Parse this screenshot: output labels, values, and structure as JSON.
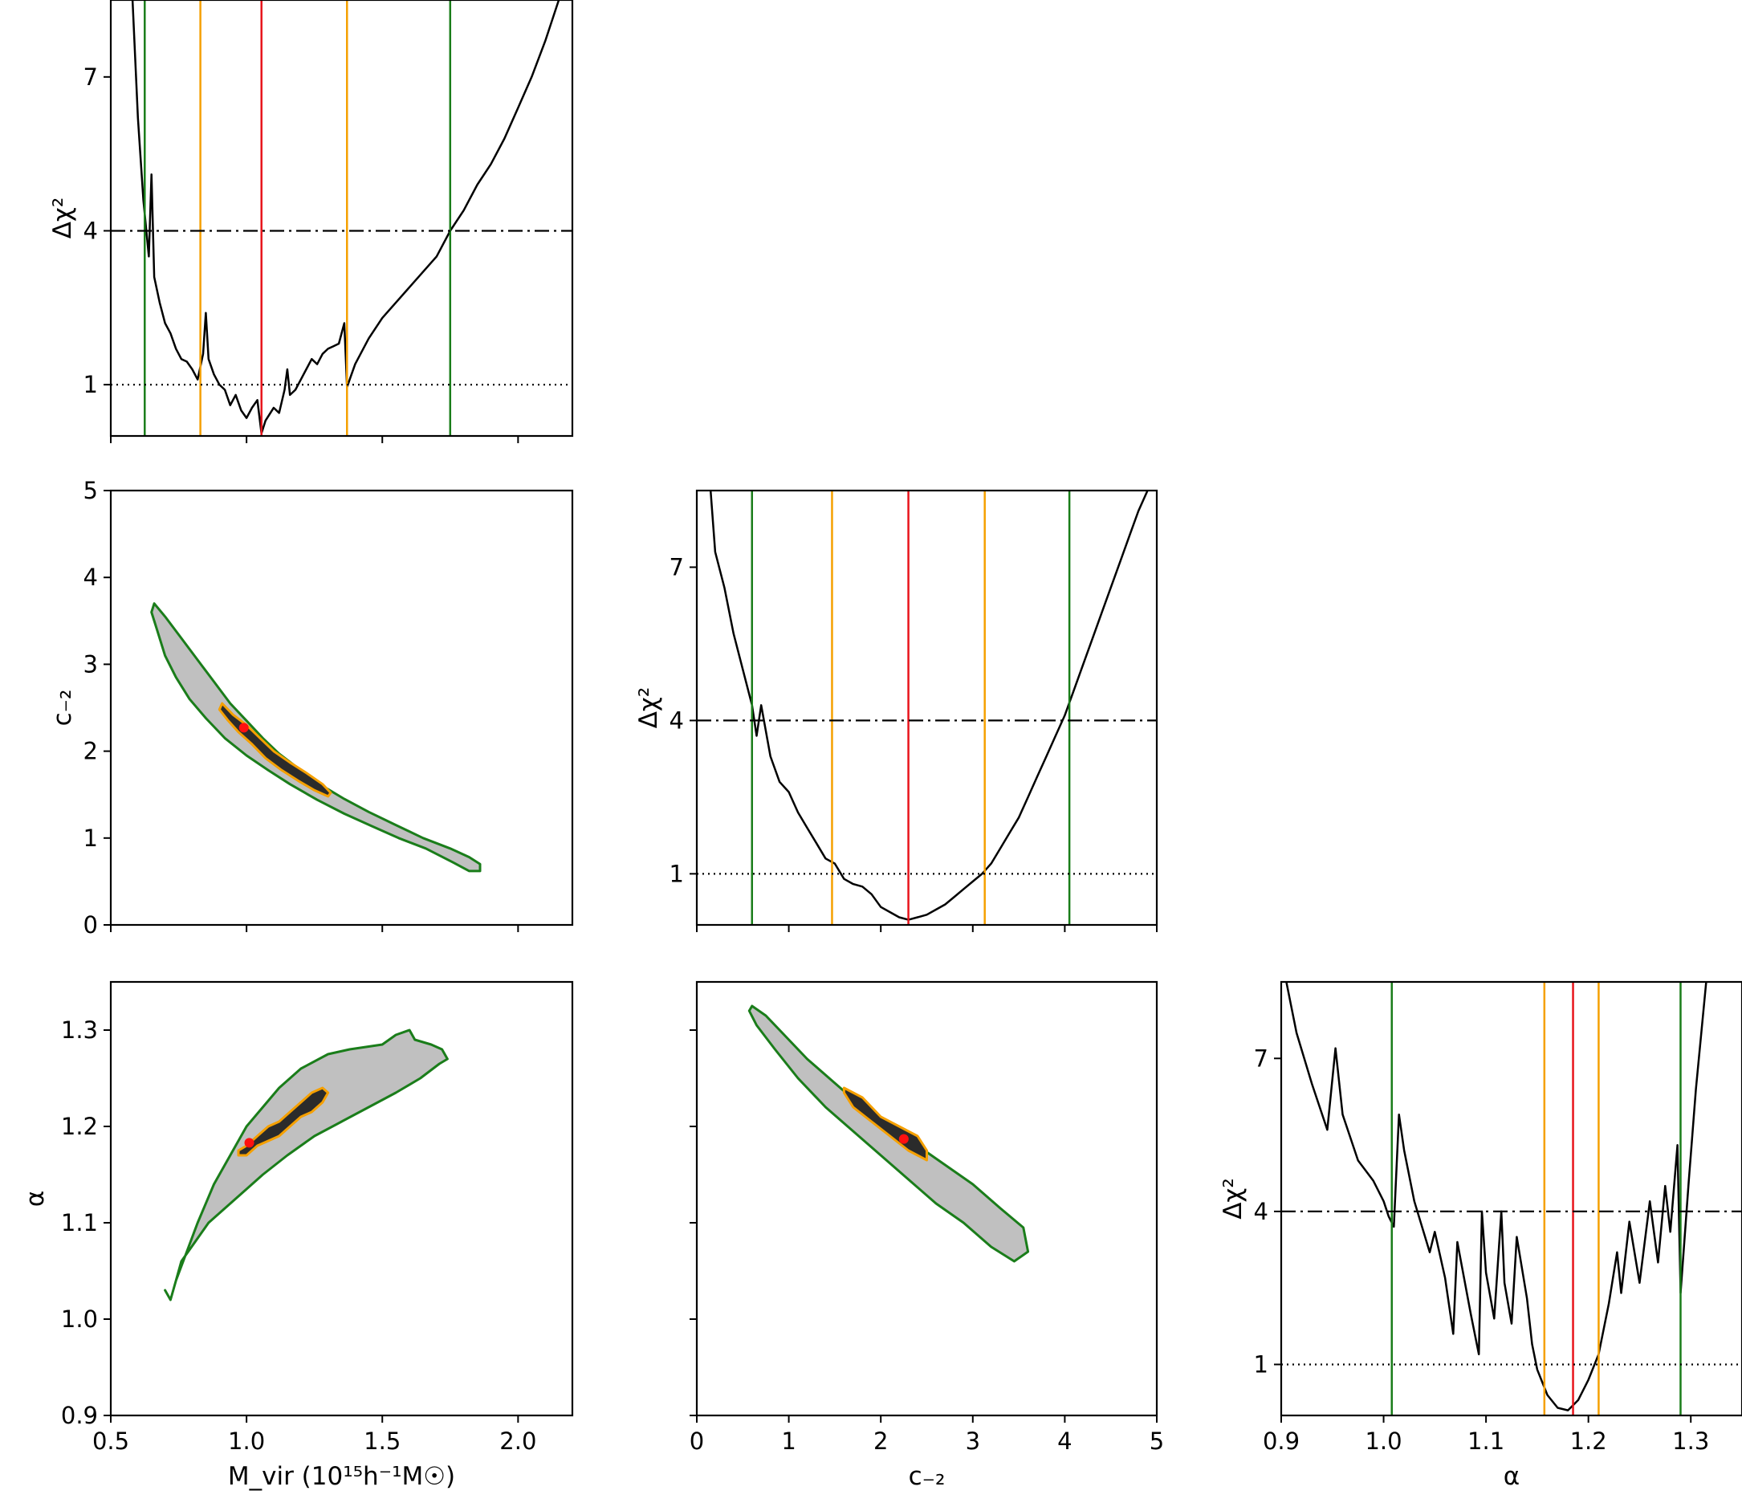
{
  "colors": {
    "profile": "#000000",
    "best_fit": "#e8141b",
    "one_sigma": "#f5a000",
    "two_sigma": "#1a7d1a",
    "region_2sigma_fill": "#c0c0c0",
    "region_1sigma_fill": "#2b2b2b",
    "marker_fill": "#ff1010",
    "reference_line": "#000000"
  },
  "chart_data": [
    {
      "id": "mvir_profile",
      "type": "line",
      "title": "",
      "xlabel": "",
      "ylabel": "Δχ²",
      "xlim": [
        0.5,
        2.2
      ],
      "ylim": [
        0.0,
        8.5
      ],
      "yticks": [
        1,
        4,
        7
      ],
      "ytick_labels": [
        "1",
        "4",
        "7"
      ],
      "xticks": [
        0.5,
        1.0,
        1.5,
        2.0
      ],
      "xtick_labels_shown": false,
      "hlines": [
        {
          "y": 1,
          "style": "dotted"
        },
        {
          "y": 4,
          "style": "dashdot"
        }
      ],
      "vlines": [
        {
          "x": 0.625,
          "color": "two_sigma"
        },
        {
          "x": 0.83,
          "color": "one_sigma"
        },
        {
          "x": 1.055,
          "color": "best_fit"
        },
        {
          "x": 1.37,
          "color": "one_sigma"
        },
        {
          "x": 1.75,
          "color": "two_sigma"
        }
      ],
      "series": [
        {
          "name": "Δχ² profile",
          "x": [
            0.58,
            0.6,
            0.62,
            0.64,
            0.65,
            0.66,
            0.68,
            0.7,
            0.72,
            0.74,
            0.76,
            0.78,
            0.8,
            0.82,
            0.84,
            0.85,
            0.86,
            0.88,
            0.9,
            0.92,
            0.94,
            0.96,
            0.98,
            1.0,
            1.02,
            1.04,
            1.055,
            1.07,
            1.1,
            1.12,
            1.14,
            1.15,
            1.16,
            1.18,
            1.2,
            1.22,
            1.24,
            1.26,
            1.28,
            1.3,
            1.32,
            1.34,
            1.36,
            1.37,
            1.38,
            1.4,
            1.45,
            1.5,
            1.55,
            1.6,
            1.65,
            1.7,
            1.75,
            1.8,
            1.85,
            1.9,
            1.95,
            2.0,
            2.05,
            2.1,
            2.15
          ],
          "y": [
            8.5,
            6.2,
            4.6,
            3.5,
            5.1,
            3.1,
            2.6,
            2.2,
            2.0,
            1.7,
            1.5,
            1.45,
            1.3,
            1.1,
            1.6,
            2.4,
            1.5,
            1.2,
            1.0,
            0.9,
            0.6,
            0.8,
            0.5,
            0.35,
            0.55,
            0.7,
            0.05,
            0.3,
            0.55,
            0.45,
            0.9,
            1.3,
            0.8,
            0.9,
            1.1,
            1.3,
            1.5,
            1.4,
            1.6,
            1.7,
            1.75,
            1.8,
            2.2,
            0.95,
            1.1,
            1.4,
            1.9,
            2.3,
            2.6,
            2.9,
            3.2,
            3.5,
            4.0,
            4.4,
            4.9,
            5.3,
            5.8,
            6.4,
            7.0,
            7.7,
            8.5
          ]
        }
      ]
    },
    {
      "id": "c2_profile",
      "type": "line",
      "title": "",
      "xlabel": "",
      "ylabel": "Δχ²",
      "xlim": [
        0,
        5
      ],
      "ylim": [
        0.0,
        8.5
      ],
      "yticks": [
        1,
        4,
        7
      ],
      "ytick_labels": [
        "1",
        "4",
        "7"
      ],
      "xticks": [
        0,
        1,
        2,
        3,
        4,
        5
      ],
      "xtick_labels_shown": false,
      "hlines": [
        {
          "y": 1,
          "style": "dotted"
        },
        {
          "y": 4,
          "style": "dashdot"
        }
      ],
      "vlines": [
        {
          "x": 0.6,
          "color": "two_sigma"
        },
        {
          "x": 1.47,
          "color": "one_sigma"
        },
        {
          "x": 2.3,
          "color": "best_fit"
        },
        {
          "x": 3.13,
          "color": "one_sigma"
        },
        {
          "x": 4.05,
          "color": "two_sigma"
        }
      ],
      "series": [
        {
          "name": "Δχ² profile",
          "x": [
            0.15,
            0.2,
            0.3,
            0.4,
            0.5,
            0.6,
            0.65,
            0.7,
            0.8,
            0.9,
            1.0,
            1.1,
            1.2,
            1.3,
            1.4,
            1.5,
            1.6,
            1.7,
            1.8,
            1.9,
            2.0,
            2.1,
            2.2,
            2.3,
            2.4,
            2.5,
            2.6,
            2.7,
            2.8,
            2.9,
            3.0,
            3.1,
            3.2,
            3.3,
            3.4,
            3.5,
            3.6,
            3.7,
            3.8,
            3.9,
            4.0,
            4.1,
            4.2,
            4.3,
            4.4,
            4.5,
            4.6,
            4.7,
            4.8,
            4.9
          ],
          "y": [
            8.5,
            7.3,
            6.6,
            5.7,
            5.0,
            4.3,
            3.7,
            4.3,
            3.3,
            2.8,
            2.6,
            2.2,
            1.9,
            1.6,
            1.3,
            1.2,
            0.9,
            0.8,
            0.75,
            0.6,
            0.35,
            0.25,
            0.15,
            0.1,
            0.15,
            0.2,
            0.3,
            0.4,
            0.55,
            0.7,
            0.85,
            1.0,
            1.2,
            1.5,
            1.8,
            2.1,
            2.5,
            2.9,
            3.3,
            3.7,
            4.1,
            4.6,
            5.1,
            5.6,
            6.1,
            6.6,
            7.1,
            7.6,
            8.1,
            8.5
          ]
        }
      ]
    },
    {
      "id": "alpha_profile",
      "type": "line",
      "title": "",
      "xlabel": "α",
      "ylabel": "Δχ²",
      "xlim": [
        0.9,
        1.35
      ],
      "ylim": [
        0.0,
        8.5
      ],
      "yticks": [
        1,
        4,
        7
      ],
      "ytick_labels": [
        "1",
        "4",
        "7"
      ],
      "xticks": [
        0.9,
        1.0,
        1.1,
        1.2,
        1.3
      ],
      "xtick_labels": [
        "0.9",
        "1.0",
        "1.1",
        "1.2",
        "1.3"
      ],
      "hlines": [
        {
          "y": 1,
          "style": "dotted"
        },
        {
          "y": 4,
          "style": "dashdot"
        }
      ],
      "vlines": [
        {
          "x": 1.008,
          "color": "two_sigma"
        },
        {
          "x": 1.157,
          "color": "one_sigma"
        },
        {
          "x": 1.185,
          "color": "best_fit"
        },
        {
          "x": 1.21,
          "color": "one_sigma"
        },
        {
          "x": 1.29,
          "color": "two_sigma"
        }
      ],
      "series": [
        {
          "name": "Δχ² profile",
          "x": [
            0.905,
            0.915,
            0.93,
            0.945,
            0.953,
            0.96,
            0.975,
            0.99,
            1.0,
            1.005,
            1.01,
            1.015,
            1.02,
            1.03,
            1.045,
            1.05,
            1.06,
            1.068,
            1.072,
            1.085,
            1.093,
            1.096,
            1.1,
            1.108,
            1.115,
            1.118,
            1.125,
            1.13,
            1.14,
            1.145,
            1.15,
            1.16,
            1.17,
            1.18,
            1.19,
            1.2,
            1.21,
            1.22,
            1.228,
            1.232,
            1.24,
            1.25,
            1.26,
            1.268,
            1.275,
            1.28,
            1.287,
            1.29,
            1.298,
            1.305,
            1.315
          ],
          "y": [
            8.5,
            7.5,
            6.5,
            5.6,
            7.2,
            5.9,
            5.0,
            4.6,
            4.2,
            3.9,
            3.7,
            5.9,
            5.2,
            4.2,
            3.2,
            3.6,
            2.7,
            1.6,
            3.4,
            2.0,
            1.2,
            4.0,
            2.8,
            1.9,
            4.0,
            2.6,
            1.8,
            3.5,
            2.3,
            1.4,
            0.9,
            0.4,
            0.15,
            0.1,
            0.3,
            0.7,
            1.2,
            2.2,
            3.2,
            2.4,
            3.8,
            2.6,
            4.2,
            3.0,
            4.5,
            3.6,
            5.3,
            2.4,
            4.6,
            6.4,
            8.5
          ]
        }
      ]
    },
    {
      "id": "mvir_c2_contour",
      "type": "scatter",
      "title": "",
      "xlabel": "",
      "ylabel": "c₋₂",
      "xlim": [
        0.5,
        2.2
      ],
      "ylim": [
        0,
        5
      ],
      "yticks": [
        0,
        1,
        2,
        3,
        4,
        5
      ],
      "ytick_labels": [
        "0",
        "1",
        "2",
        "3",
        "4",
        "5"
      ],
      "xticks": [
        0.5,
        1.0,
        1.5,
        2.0
      ],
      "xtick_labels_shown": false,
      "regions": [
        {
          "level": "two_sigma",
          "fill": "region_2sigma_fill",
          "edge": "two_sigma",
          "x": [
            0.66,
            0.7,
            0.76,
            0.82,
            0.88,
            0.94,
            1.0,
            1.06,
            1.12,
            1.2,
            1.28,
            1.36,
            1.45,
            1.55,
            1.65,
            1.75,
            1.82,
            1.86,
            1.86,
            1.82,
            1.76,
            1.66,
            1.56,
            1.46,
            1.36,
            1.26,
            1.16,
            1.08,
            1.0,
            0.92,
            0.85,
            0.79,
            0.74,
            0.7,
            0.67,
            0.65
          ],
          "y": [
            3.7,
            3.55,
            3.3,
            3.05,
            2.8,
            2.55,
            2.35,
            2.15,
            1.97,
            1.78,
            1.6,
            1.45,
            1.3,
            1.15,
            1.0,
            0.88,
            0.78,
            0.7,
            0.62,
            0.62,
            0.72,
            0.88,
            1.0,
            1.14,
            1.28,
            1.44,
            1.62,
            1.78,
            1.95,
            2.15,
            2.38,
            2.6,
            2.85,
            3.1,
            3.4,
            3.6
          ]
        },
        {
          "level": "one_sigma",
          "fill": "region_1sigma_fill",
          "edge": "one_sigma",
          "x": [
            0.91,
            0.95,
            1.0,
            1.05,
            1.1,
            1.16,
            1.22,
            1.28,
            1.31,
            1.3,
            1.25,
            1.19,
            1.13,
            1.07,
            1.02,
            0.97,
            0.93,
            0.9
          ],
          "y": [
            2.55,
            2.42,
            2.3,
            2.15,
            2.0,
            1.87,
            1.75,
            1.62,
            1.52,
            1.48,
            1.55,
            1.66,
            1.78,
            1.92,
            2.08,
            2.22,
            2.36,
            2.48
          ]
        }
      ],
      "markers": [
        {
          "x": 0.99,
          "y": 2.27,
          "label": "best fit"
        }
      ]
    },
    {
      "id": "mvir_alpha_contour",
      "type": "scatter",
      "title": "",
      "xlabel": "M_vir (10¹⁵h⁻¹M☉)",
      "ylabel": "α",
      "xlim": [
        0.5,
        2.2
      ],
      "ylim": [
        0.9,
        1.35
      ],
      "yticks": [
        0.9,
        1.0,
        1.1,
        1.2,
        1.3
      ],
      "ytick_labels": [
        "0.9",
        "1.0",
        "1.1",
        "1.2",
        "1.3"
      ],
      "xticks": [
        0.5,
        1.0,
        1.5,
        2.0
      ],
      "xtick_labels": [
        "0.5",
        "1.0",
        "1.5",
        "2.0"
      ],
      "regions": [
        {
          "level": "two_sigma",
          "fill": "region_2sigma_fill",
          "edge": "two_sigma",
          "x": [
            0.72,
            0.74,
            0.78,
            0.82,
            0.88,
            0.94,
            1.0,
            1.06,
            1.12,
            1.2,
            1.3,
            1.38,
            1.5,
            1.55,
            1.6,
            1.62,
            1.68,
            1.72,
            1.74,
            1.71,
            1.64,
            1.55,
            1.45,
            1.35,
            1.25,
            1.15,
            1.06,
            0.98,
            0.92,
            0.86,
            0.81,
            0.76,
            0.74,
            0.72,
            0.7
          ],
          "y": [
            1.02,
            1.04,
            1.07,
            1.1,
            1.14,
            1.17,
            1.2,
            1.22,
            1.24,
            1.26,
            1.275,
            1.28,
            1.285,
            1.295,
            1.3,
            1.29,
            1.285,
            1.28,
            1.27,
            1.265,
            1.25,
            1.235,
            1.22,
            1.205,
            1.19,
            1.17,
            1.15,
            1.13,
            1.115,
            1.1,
            1.08,
            1.06,
            1.04,
            1.02,
            1.03
          ]
        },
        {
          "level": "one_sigma",
          "fill": "region_1sigma_fill",
          "edge": "one_sigma",
          "x": [
            0.97,
            1.0,
            1.04,
            1.08,
            1.12,
            1.16,
            1.2,
            1.24,
            1.28,
            1.3,
            1.28,
            1.24,
            1.2,
            1.16,
            1.12,
            1.08,
            1.04,
            1.0,
            0.97
          ],
          "y": [
            1.175,
            1.18,
            1.19,
            1.2,
            1.205,
            1.215,
            1.225,
            1.235,
            1.24,
            1.235,
            1.225,
            1.215,
            1.21,
            1.2,
            1.19,
            1.185,
            1.18,
            1.17,
            1.17
          ]
        }
      ],
      "markers": [
        {
          "x": 1.01,
          "y": 1.183,
          "label": "best fit"
        }
      ]
    },
    {
      "id": "c2_alpha_contour",
      "type": "scatter",
      "title": "",
      "xlabel": "c₋₂",
      "ylabel": "",
      "xlim": [
        0,
        5
      ],
      "ylim": [
        0.9,
        1.35
      ],
      "yticks": [
        0.9,
        1.0,
        1.1,
        1.2,
        1.3
      ],
      "ytick_labels_shown": false,
      "xticks": [
        0,
        1,
        2,
        3,
        4,
        5
      ],
      "xtick_labels": [
        "0",
        "1",
        "2",
        "3",
        "4",
        "5"
      ],
      "regions": [
        {
          "level": "two_sigma",
          "fill": "region_2sigma_fill",
          "edge": "two_sigma",
          "x": [
            0.6,
            0.75,
            0.95,
            1.2,
            1.5,
            1.8,
            2.1,
            2.4,
            2.7,
            3.0,
            3.3,
            3.55,
            3.6,
            3.45,
            3.2,
            2.9,
            2.6,
            2.3,
            2.0,
            1.7,
            1.4,
            1.1,
            0.85,
            0.65,
            0.57
          ],
          "y": [
            1.325,
            1.315,
            1.295,
            1.27,
            1.245,
            1.22,
            1.2,
            1.18,
            1.16,
            1.14,
            1.115,
            1.095,
            1.07,
            1.06,
            1.075,
            1.1,
            1.12,
            1.145,
            1.17,
            1.195,
            1.22,
            1.25,
            1.28,
            1.305,
            1.32
          ]
        },
        {
          "level": "one_sigma",
          "fill": "region_1sigma_fill",
          "edge": "one_sigma",
          "x": [
            1.6,
            1.8,
            2.0,
            2.2,
            2.4,
            2.5,
            2.5,
            2.3,
            2.1,
            1.9,
            1.7,
            1.6
          ],
          "y": [
            1.24,
            1.23,
            1.21,
            1.2,
            1.19,
            1.175,
            1.165,
            1.175,
            1.19,
            1.205,
            1.22,
            1.235
          ]
        }
      ],
      "markers": [
        {
          "x": 2.25,
          "y": 1.187,
          "label": "best fit"
        }
      ]
    }
  ]
}
